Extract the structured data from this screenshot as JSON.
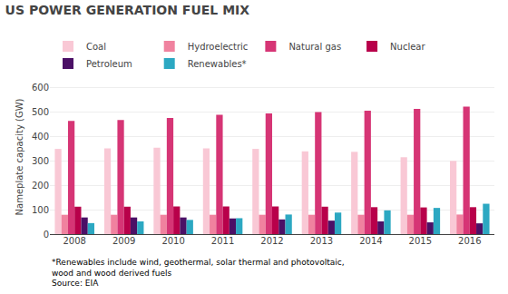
{
  "chart_data": {
    "type": "bar",
    "title": "US POWER GENERATION FUEL MIX",
    "ylabel": "Nameplate capacity (GW)",
    "categories": [
      "2008",
      "2009",
      "2010",
      "2011",
      "2012",
      "2013",
      "2014",
      "2015",
      "2016"
    ],
    "series": [
      {
        "name": "Coal",
        "color": "#f9c8d5",
        "values": [
          348,
          350,
          353,
          350,
          348,
          338,
          336,
          314,
          299
        ]
      },
      {
        "name": "Hydroelectric",
        "color": "#f0829f",
        "values": [
          79,
          79,
          79,
          79,
          79,
          79,
          79,
          79,
          80
        ]
      },
      {
        "name": "Natural gas",
        "color": "#d63575",
        "values": [
          462,
          466,
          474,
          487,
          493,
          498,
          504,
          511,
          521
        ]
      },
      {
        "name": "Nuclear",
        "color": "#b8004a",
        "values": [
          112,
          112,
          113,
          113,
          113,
          112,
          110,
          109,
          110
        ]
      },
      {
        "name": "Petroleum",
        "color": "#4b1066",
        "values": [
          68,
          68,
          68,
          64,
          60,
          55,
          52,
          48,
          44
        ]
      },
      {
        "name": "Renewables*",
        "color": "#2ca8c2",
        "values": [
          45,
          52,
          58,
          65,
          80,
          88,
          97,
          107,
          124
        ]
      }
    ],
    "ylim": [
      0,
      630
    ],
    "yticks": [
      0,
      100,
      200,
      300,
      400,
      500,
      600
    ],
    "grid": true,
    "legend": "top",
    "annotations": [
      "*Renewables include wind, geothermal, solar thermal and photovoltaic,\nwood and wood derived fuels\nSource: EIA"
    ]
  }
}
